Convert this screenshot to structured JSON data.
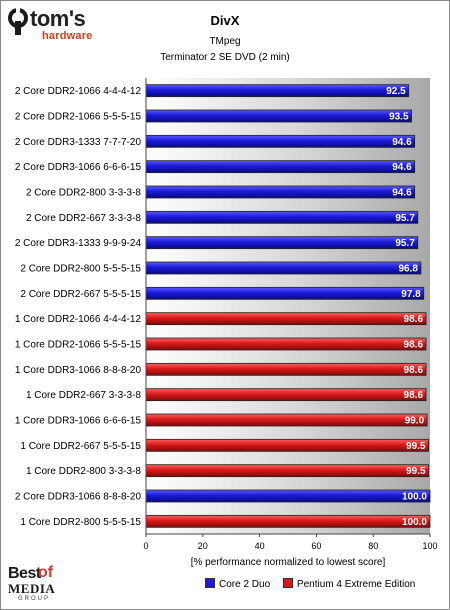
{
  "logo": {
    "name": "tom's",
    "subname": "hardware"
  },
  "badge": {
    "best": "Best",
    "of": "of",
    "media": "MEDIA",
    "group": "GROUP"
  },
  "colors": {
    "core2": "#1a1ad8",
    "p4": "#d81a1a"
  },
  "chart_data": {
    "type": "bar",
    "orientation": "horizontal",
    "title": "DivX",
    "subtitle": "TMpeg",
    "subtitle2": "Terminator 2 SE DVD (2 min)",
    "xlabel": "[% performance normalized to lowest score]",
    "xlim": [
      0,
      100
    ],
    "xticks": [
      0,
      20,
      40,
      60,
      80,
      100
    ],
    "grid": false,
    "legend_position": "bottom-right",
    "legend": [
      {
        "name": "Core 2 Duo",
        "color": "#1a1ad8"
      },
      {
        "name": "Pentium 4 Extreme Edition",
        "color": "#d81a1a"
      }
    ],
    "bars": [
      {
        "label": "2 Core DDR2-1066 4-4-4-12",
        "value": 92.5,
        "series": "Core 2 Duo"
      },
      {
        "label": "2 Core DDR2-1066 5-5-5-15",
        "value": 93.5,
        "series": "Core 2 Duo"
      },
      {
        "label": "2 Core DDR3-1333 7-7-7-20",
        "value": 94.6,
        "series": "Core 2 Duo"
      },
      {
        "label": "2 Core DDR3-1066 6-6-6-15",
        "value": 94.6,
        "series": "Core 2 Duo"
      },
      {
        "label": "2 Core DDR2-800 3-3-3-8",
        "value": 94.6,
        "series": "Core 2 Duo"
      },
      {
        "label": "2 Core DDR2-667 3-3-3-8",
        "value": 95.7,
        "series": "Core 2 Duo"
      },
      {
        "label": "2 Core DDR3-1333 9-9-9-24",
        "value": 95.7,
        "series": "Core 2 Duo"
      },
      {
        "label": "2 Core DDR2-800 5-5-5-15",
        "value": 96.8,
        "series": "Core 2 Duo"
      },
      {
        "label": "2 Core DDR2-667 5-5-5-15",
        "value": 97.8,
        "series": "Core 2 Duo"
      },
      {
        "label": "1 Core DDR2-1066 4-4-4-12",
        "value": 98.6,
        "series": "Pentium 4 Extreme Edition"
      },
      {
        "label": "1 Core DDR2-1066 5-5-5-15",
        "value": 98.6,
        "series": "Pentium 4 Extreme Edition"
      },
      {
        "label": "1 Core DDR3-1066 8-8-8-20",
        "value": 98.6,
        "series": "Pentium 4 Extreme Edition"
      },
      {
        "label": "1 Core DDR2-667 3-3-3-8",
        "value": 98.6,
        "series": "Pentium 4 Extreme Edition"
      },
      {
        "label": "1 Core DDR3-1066 6-6-6-15",
        "value": 99.0,
        "series": "Pentium 4 Extreme Edition"
      },
      {
        "label": "1 Core DDR2-667 5-5-5-15",
        "value": 99.5,
        "series": "Pentium 4 Extreme Edition"
      },
      {
        "label": "1 Core DDR2-800 3-3-3-8",
        "value": 99.5,
        "series": "Pentium 4 Extreme Edition"
      },
      {
        "label": "2 Core DDR3-1066 8-8-8-20",
        "value": 100.0,
        "series": "Core 2 Duo"
      },
      {
        "label": "1 Core DDR2-800 5-5-5-15",
        "value": 100.0,
        "series": "Pentium 4 Extreme Edition"
      }
    ]
  }
}
